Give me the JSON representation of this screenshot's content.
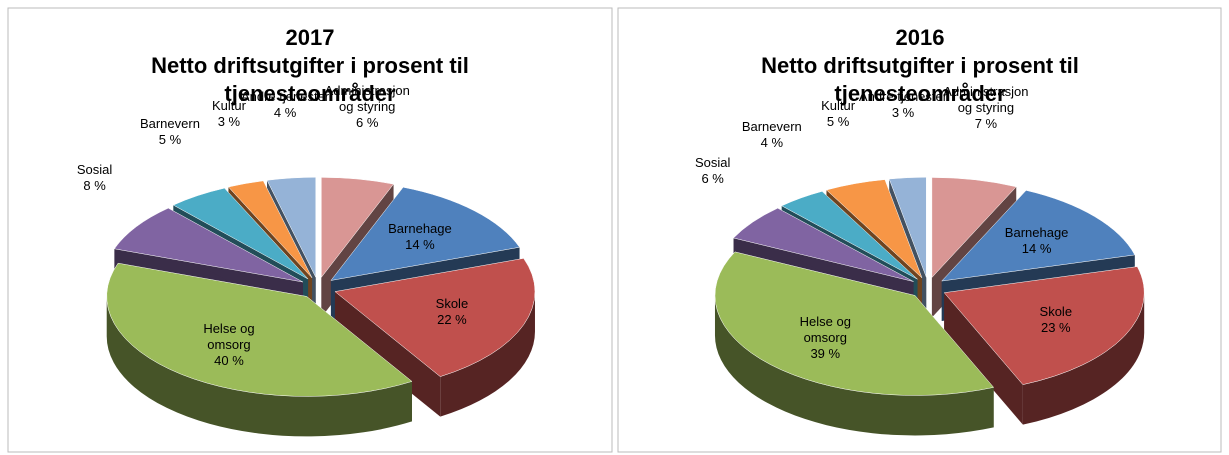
{
  "chart_data": [
    {
      "type": "pie",
      "title": "2017",
      "subtitle": "Netto driftsutgifter i prosent til tjenesteområder",
      "categories": [
        "Administrasjon og styring",
        "Barnehage",
        "Skole",
        "Helse og omsorg",
        "Sosial",
        "Barnevern",
        "Kultur",
        "Andre tjenester"
      ],
      "values": [
        6,
        14,
        22,
        40,
        8,
        5,
        3,
        4
      ],
      "value_labels": [
        "6 %",
        "14 %",
        "22 %",
        "40 %",
        "8 %",
        "5 %",
        "3 %",
        "4 %"
      ],
      "colors": [
        "#d99694",
        "#4f81bd",
        "#c0504d",
        "#9bbb59",
        "#8064a2",
        "#4bacc6",
        "#f79646",
        "#95b3d7"
      ]
    },
    {
      "type": "pie",
      "title": "2016",
      "subtitle": "Netto driftsutgifter i prosent til tjenesteområder",
      "categories": [
        "Administrasjon og styring",
        "Barnehage",
        "Skole",
        "Helse og omsorg",
        "Sosial",
        "Barnevern",
        "Kultur",
        "Andre tjenester"
      ],
      "values": [
        7,
        14,
        23,
        39,
        6,
        4,
        5,
        3
      ],
      "value_labels": [
        "7 %",
        "14 %",
        "23 %",
        "39 %",
        "6 %",
        "4 %",
        "5 %",
        "3 %"
      ],
      "colors": [
        "#d99694",
        "#4f81bd",
        "#c0504d",
        "#9bbb59",
        "#8064a2",
        "#4bacc6",
        "#f79646",
        "#95b3d7"
      ]
    }
  ]
}
